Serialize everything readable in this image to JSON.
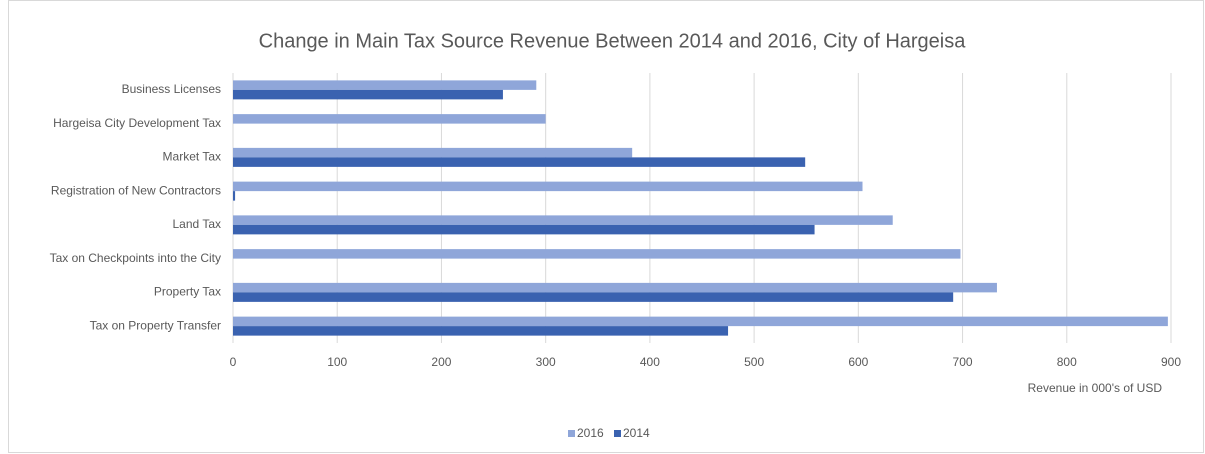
{
  "chart_data": {
    "type": "barh",
    "title": "Change in Main Tax Source Revenue Between 2014 and 2016, City of Hargeisa",
    "xlabel": "Revenue in 000's of USD",
    "categories": [
      "Business Licenses",
      "Hargeisa City Development Tax",
      "Market Tax",
      "Registration of New Contractors",
      "Land Tax",
      "Tax on Checkpoints into the City",
      "Property Tax",
      "Tax on Property Transfer"
    ],
    "series": [
      {
        "name": "2016",
        "color": "#8fa6d9",
        "values": [
          291,
          300,
          383,
          604,
          633,
          698,
          733,
          897
        ]
      },
      {
        "name": "2014",
        "color": "#3a62b0",
        "values": [
          259,
          null,
          549,
          2,
          558,
          null,
          691,
          475
        ]
      }
    ],
    "xlim": [
      0,
      900
    ],
    "xticks": [
      0,
      100,
      200,
      300,
      400,
      500,
      600,
      700,
      800,
      900
    ],
    "grid": true,
    "legend": "bottom"
  }
}
